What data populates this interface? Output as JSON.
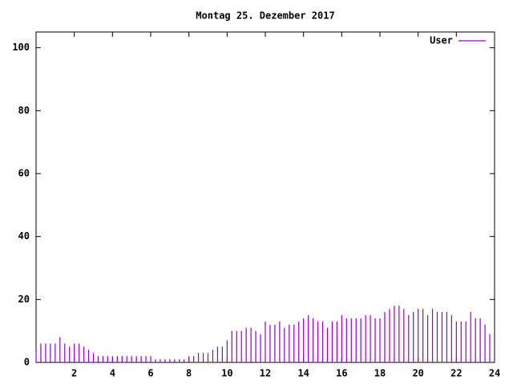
{
  "chart_data": {
    "type": "impulse",
    "title": "Montag 25. Dezember 2017",
    "x": [
      0,
      0.25,
      0.5,
      0.75,
      1,
      1.25,
      1.5,
      1.75,
      2,
      2.25,
      2.5,
      2.75,
      3,
      3.25,
      3.5,
      3.75,
      4,
      4.25,
      4.5,
      4.75,
      5,
      5.25,
      5.5,
      5.75,
      6,
      6.25,
      6.5,
      6.75,
      7,
      7.25,
      7.5,
      7.75,
      8,
      8.25,
      8.5,
      8.75,
      9,
      9.25,
      9.5,
      9.75,
      10,
      10.25,
      10.5,
      10.75,
      11,
      11.25,
      11.5,
      11.75,
      12,
      12.25,
      12.5,
      12.75,
      13,
      13.25,
      13.5,
      13.75,
      14,
      14.25,
      14.5,
      14.75,
      15,
      15.25,
      15.5,
      15.75,
      16,
      16.25,
      16.5,
      16.75,
      17,
      17.25,
      17.5,
      17.75,
      18,
      18.25,
      18.5,
      18.75,
      19,
      19.25,
      19.5,
      19.75,
      20,
      20.25,
      20.5,
      20.75,
      21,
      21.25,
      21.5,
      21.75,
      22,
      22.25,
      22.5,
      22.75,
      23,
      23.25,
      23.5,
      23.75
    ],
    "series": [
      {
        "name": "User",
        "color": "#9400d3",
        "values": [
          4,
          6,
          6,
          6,
          6,
          8,
          6,
          5,
          6,
          6,
          5,
          4,
          3,
          2,
          2,
          2,
          2,
          2,
          2,
          2,
          2,
          2,
          2,
          2,
          2,
          1,
          1,
          1,
          1,
          1,
          1,
          1,
          2,
          2,
          3,
          3,
          3,
          4,
          5,
          5,
          7,
          10,
          10,
          10,
          11,
          11,
          10,
          9,
          13,
          12,
          12,
          13,
          11,
          12,
          12,
          13,
          14,
          15,
          14,
          13,
          13,
          11,
          13,
          13,
          15,
          14,
          14,
          14,
          14,
          15,
          15,
          14,
          14,
          16,
          17,
          18,
          18,
          17,
          15,
          16,
          17,
          17,
          15,
          17,
          16,
          16,
          16,
          15,
          13,
          13,
          13,
          16,
          14,
          14,
          12,
          9
        ]
      }
    ],
    "xlim": [
      0,
      24
    ],
    "xticks": [
      2,
      4,
      6,
      8,
      10,
      12,
      14,
      16,
      18,
      20,
      22,
      24
    ],
    "ylim": [
      0,
      105
    ],
    "yticks": [
      0,
      20,
      40,
      60,
      80,
      100
    ],
    "legend": "top-right"
  }
}
